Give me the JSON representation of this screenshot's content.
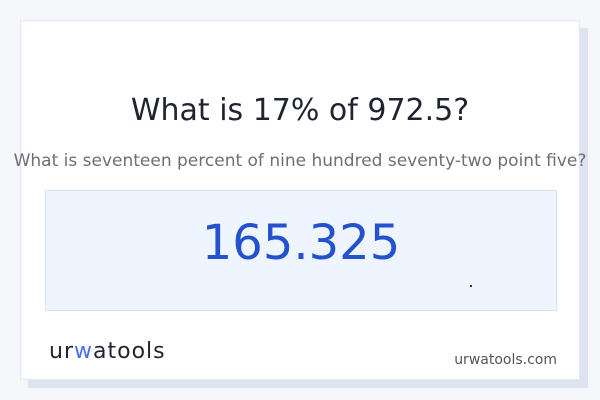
{
  "title": "What is 17% of 972.5?",
  "subtitle": "What is seventeen percent of nine hundred seventy-two point five?",
  "answer": "165.325",
  "logo": {
    "pre": "ur",
    "accent": "w",
    "post": "atools"
  },
  "site": "urwatools.com",
  "colors": {
    "answer_text": "#2352cc",
    "answer_bg": "#eef5ff",
    "accent": "#4a6cf7"
  }
}
